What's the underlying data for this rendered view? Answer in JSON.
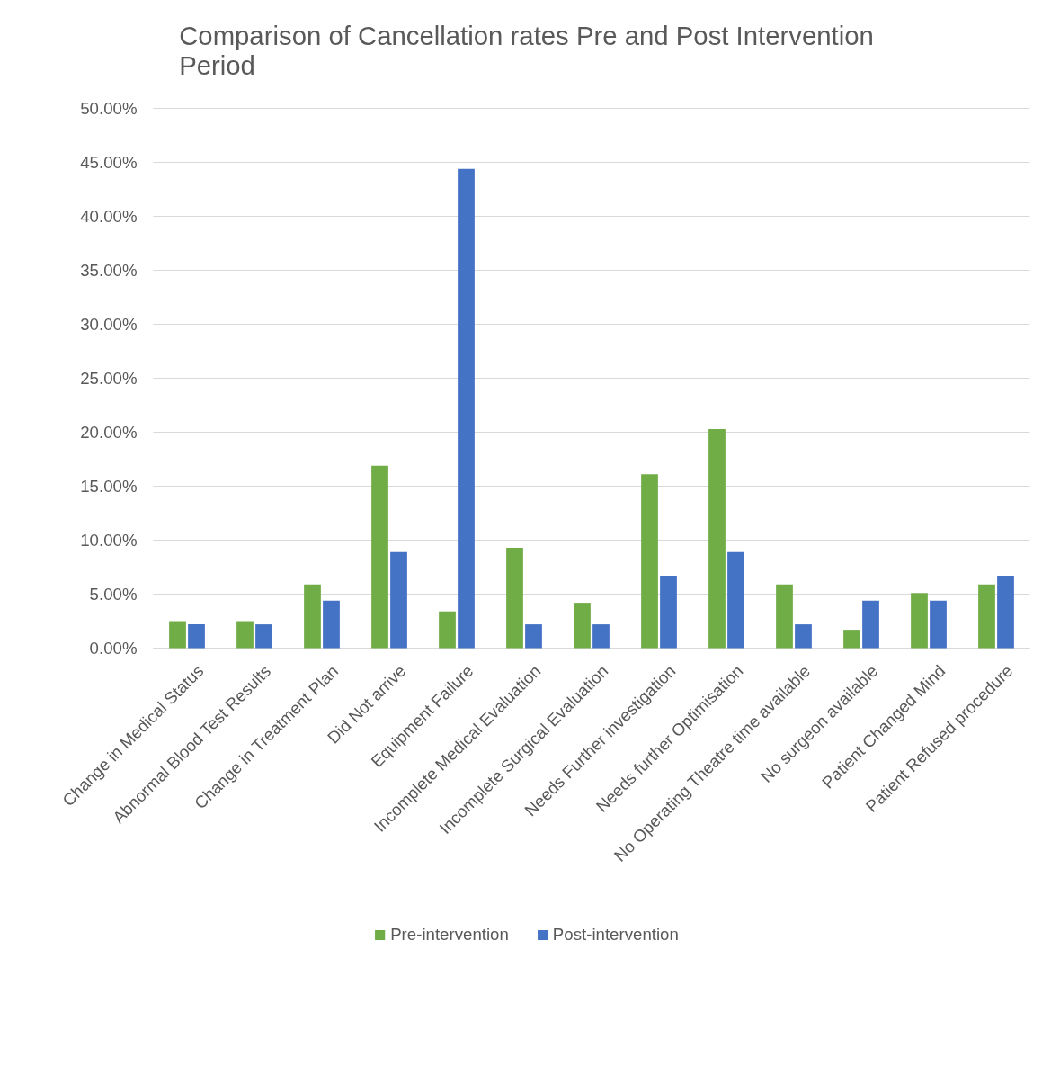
{
  "chart_data": {
    "type": "bar",
    "title": "Comparison of Cancellation rates Pre and Post Intervention Period",
    "categories": [
      "Change in Medical Status",
      "Abnormal Blood Test Results",
      "Change in Treatment Plan",
      "Did Not arrive",
      "Equipment Failure",
      "Incomplete Medical Evaluation",
      "Incomplete Surgical Evaluation",
      "Needs Further investigation",
      "Needs further Optimisation",
      "No Operating Theatre time available",
      "No surgeon available",
      "Patient Changed Mind",
      "Patient Refused procedure"
    ],
    "series": [
      {
        "name": "Pre-intervention",
        "color": "#70ad47",
        "values": [
          2.5,
          2.5,
          5.9,
          16.9,
          3.4,
          9.3,
          4.2,
          16.1,
          20.3,
          5.9,
          1.7,
          5.1,
          5.9
        ]
      },
      {
        "name": "Post-intervention",
        "color": "#4472c4",
        "values": [
          2.2,
          2.2,
          4.4,
          8.9,
          44.4,
          2.2,
          2.2,
          6.7,
          8.9,
          2.2,
          4.4,
          4.4,
          6.7
        ]
      }
    ],
    "ylim": [
      0,
      50
    ],
    "yticks": [
      {
        "value": 0,
        "label": "0.00%"
      },
      {
        "value": 5,
        "label": "5.00%"
      },
      {
        "value": 10,
        "label": "10.00%"
      },
      {
        "value": 15,
        "label": "15.00%"
      },
      {
        "value": 20,
        "label": "20.00%"
      },
      {
        "value": 25,
        "label": "25.00%"
      },
      {
        "value": 30,
        "label": "30.00%"
      },
      {
        "value": 35,
        "label": "35.00%"
      },
      {
        "value": 40,
        "label": "40.00%"
      },
      {
        "value": 45,
        "label": "45.00%"
      },
      {
        "value": 50,
        "label": "50.00%"
      }
    ],
    "grid": "y",
    "legend": "bottom"
  }
}
